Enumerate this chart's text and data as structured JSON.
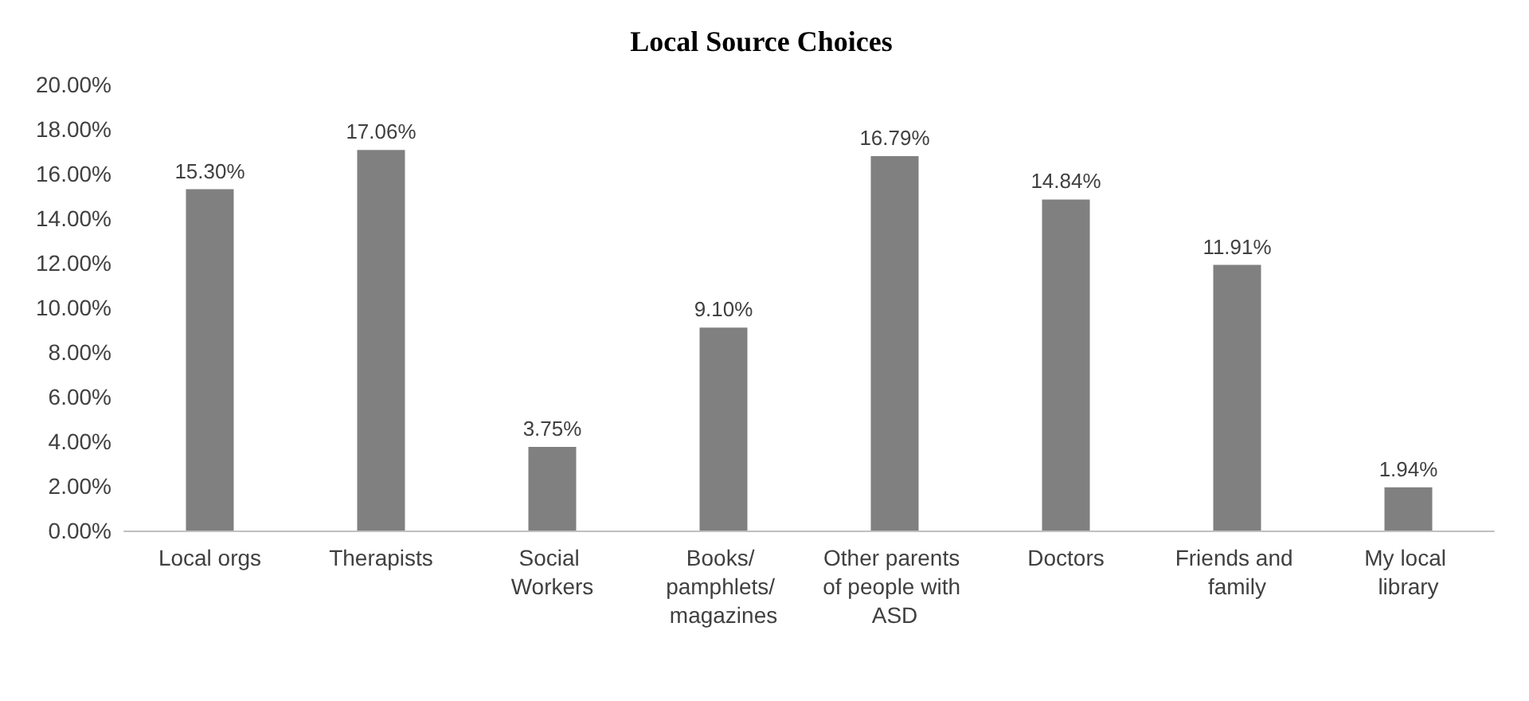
{
  "chart_data": {
    "type": "bar",
    "title": "Local Source Choices",
    "categories": [
      "Local orgs",
      "Therapists",
      "Social Workers",
      "Books/ pamphlets/ magazines",
      "Other parents of people with ASD",
      "Doctors",
      "Friends and family",
      "My local library"
    ],
    "values": [
      15.3,
      17.06,
      3.75,
      9.1,
      16.79,
      14.84,
      11.91,
      1.94
    ],
    "value_labels": [
      "15.30%",
      "17.06%",
      "3.75%",
      "9.10%",
      "16.79%",
      "14.84%",
      "11.91%",
      "1.94%"
    ],
    "color": "#808080",
    "ylim": [
      0,
      20
    ],
    "yticks": [
      {
        "value": 0,
        "label": "0.00%"
      },
      {
        "value": 2,
        "label": "2.00%"
      },
      {
        "value": 4,
        "label": "4.00%"
      },
      {
        "value": 6,
        "label": "6.00%"
      },
      {
        "value": 8,
        "label": "8.00%"
      },
      {
        "value": 10,
        "label": "10.00%"
      },
      {
        "value": 12,
        "label": "12.00%"
      },
      {
        "value": 14,
        "label": "14.00%"
      },
      {
        "value": 16,
        "label": "16.00%"
      },
      {
        "value": 18,
        "label": "18.00%"
      },
      {
        "value": 20,
        "label": "20.00%"
      }
    ],
    "grid": false
  }
}
